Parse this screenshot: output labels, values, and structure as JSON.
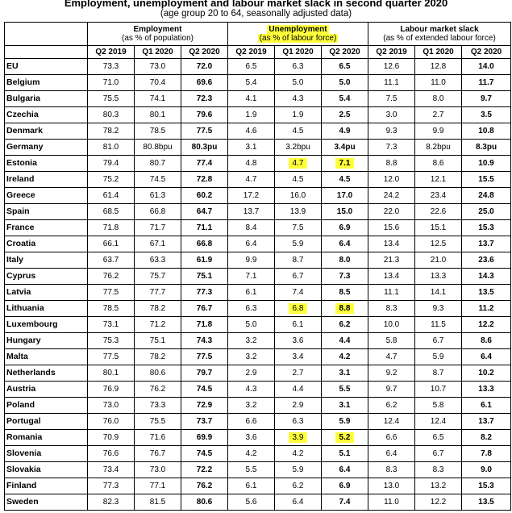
{
  "title": "Employment, unemployment and labour market slack in second quarter 2020",
  "subtitle": "(age group 20 to 64, seasonally adjusted data)",
  "groups": [
    {
      "title": "Employment",
      "unit": "(as % of population)"
    },
    {
      "title": "Unemployment",
      "unit": "(as % of labour force)"
    },
    {
      "title": "Labour market slack",
      "unit": "(as % of extended labour force)"
    }
  ],
  "periods": [
    "Q2 2019",
    "Q1 2020",
    "Q2 2020"
  ],
  "highlight_color": "#ffff3a",
  "rows": [
    {
      "country": "EU",
      "values": [
        "73.3",
        "73.0",
        "72.0",
        "6.5",
        "6.3",
        "6.5",
        "12.6",
        "12.8",
        "14.0"
      ]
    },
    {
      "country": "Belgium",
      "values": [
        "71.0",
        "70.4",
        "69.6",
        "5.4",
        "5.0",
        "5.0",
        "11.1",
        "11.0",
        "11.7"
      ]
    },
    {
      "country": "Bulgaria",
      "values": [
        "75.5",
        "74.1",
        "72.3",
        "4.1",
        "4.3",
        "5.4",
        "7.5",
        "8.0",
        "9.7"
      ]
    },
    {
      "country": "Czechia",
      "values": [
        "80.3",
        "80.1",
        "79.6",
        "1.9",
        "1.9",
        "2.5",
        "3.0",
        "2.7",
        "3.5"
      ]
    },
    {
      "country": "Denmark",
      "values": [
        "78.2",
        "78.5",
        "77.5",
        "4.6",
        "4.5",
        "4.9",
        "9.3",
        "9.9",
        "10.8"
      ]
    },
    {
      "country": "Germany",
      "values": [
        "81.0",
        "80.8bpu",
        "80.3pu",
        "3.1",
        "3.2bpu",
        "3.4pu",
        "7.3",
        "8.2bpu",
        "8.3pu"
      ]
    },
    {
      "country": "Estonia",
      "values": [
        "79.4",
        "80.7",
        "77.4",
        "4.8",
        "4.7",
        "7.1",
        "8.8",
        "8.6",
        "10.9"
      ],
      "highlight": [
        4,
        5
      ]
    },
    {
      "country": "Ireland",
      "values": [
        "75.2",
        "74.5",
        "72.8",
        "4.7",
        "4.5",
        "4.5",
        "12.0",
        "12.1",
        "15.5"
      ]
    },
    {
      "country": "Greece",
      "values": [
        "61.4",
        "61.3",
        "60.2",
        "17.2",
        "16.0",
        "17.0",
        "24.2",
        "23.4",
        "24.8"
      ]
    },
    {
      "country": "Spain",
      "values": [
        "68.5",
        "66.8",
        "64.7",
        "13.7",
        "13.9",
        "15.0",
        "22.0",
        "22.6",
        "25.0"
      ]
    },
    {
      "country": "France",
      "values": [
        "71.8",
        "71.7",
        "71.1",
        "8.4",
        "7.5",
        "6.9",
        "15.6",
        "15.1",
        "15.3"
      ]
    },
    {
      "country": "Croatia",
      "values": [
        "66.1",
        "67.1",
        "66.8",
        "6.4",
        "5.9",
        "6.4",
        "13.4",
        "12.5",
        "13.7"
      ]
    },
    {
      "country": "Italy",
      "values": [
        "63.7",
        "63.3",
        "61.9",
        "9.9",
        "8.7",
        "8.0",
        "21.3",
        "21.0",
        "23.6"
      ]
    },
    {
      "country": "Cyprus",
      "values": [
        "76.2",
        "75.7",
        "75.1",
        "7.1",
        "6.7",
        "7.3",
        "13.4",
        "13.3",
        "14.3"
      ]
    },
    {
      "country": "Latvia",
      "values": [
        "77.5",
        "77.7",
        "77.3",
        "6.1",
        "7.4",
        "8.5",
        "11.1",
        "14.1",
        "13.5"
      ]
    },
    {
      "country": "Lithuania",
      "values": [
        "78.5",
        "78.2",
        "76.7",
        "6.3",
        "6.8",
        "8.8",
        "8.3",
        "9.3",
        "11.2"
      ],
      "highlight": [
        4,
        5
      ]
    },
    {
      "country": "Luxembourg",
      "values": [
        "73.1",
        "71.2",
        "71.8",
        "5.0",
        "6.1",
        "6.2",
        "10.0",
        "11.5",
        "12.2"
      ]
    },
    {
      "country": "Hungary",
      "values": [
        "75.3",
        "75.1",
        "74.3",
        "3.2",
        "3.6",
        "4.4",
        "5.8",
        "6.7",
        "8.6"
      ]
    },
    {
      "country": "Malta",
      "values": [
        "77.5",
        "78.2",
        "77.5",
        "3.2",
        "3.4",
        "4.2",
        "4.7",
        "5.9",
        "6.4"
      ]
    },
    {
      "country": "Netherlands",
      "values": [
        "80.1",
        "80.6",
        "79.7",
        "2.9",
        "2.7",
        "3.1",
        "9.2",
        "8.7",
        "10.2"
      ]
    },
    {
      "country": "Austria",
      "values": [
        "76.9",
        "76.2",
        "74.5",
        "4.3",
        "4.4",
        "5.5",
        "9.7",
        "10.7",
        "13.3"
      ]
    },
    {
      "country": "Poland",
      "values": [
        "73.0",
        "73.3",
        "72.9",
        "3.2",
        "2.9",
        "3.1",
        "6.2",
        "5.8",
        "6.1"
      ]
    },
    {
      "country": "Portugal",
      "values": [
        "76.0",
        "75.5",
        "73.7",
        "6.6",
        "6.3",
        "5.9",
        "12.4",
        "12.4",
        "13.7"
      ]
    },
    {
      "country": "Romania",
      "values": [
        "70.9",
        "71.6",
        "69.9",
        "3.6",
        "3.9",
        "5.2",
        "6.6",
        "6.5",
        "8.2"
      ],
      "highlight": [
        4,
        5
      ]
    },
    {
      "country": "Slovenia",
      "values": [
        "76.6",
        "76.7",
        "74.5",
        "4.2",
        "4.2",
        "5.1",
        "6.4",
        "6.7",
        "7.8"
      ]
    },
    {
      "country": "Slovakia",
      "values": [
        "73.4",
        "73.0",
        "72.2",
        "5.5",
        "5.9",
        "6.4",
        "8.3",
        "8.3",
        "9.0"
      ]
    },
    {
      "country": "Finland",
      "values": [
        "77.3",
        "77.1",
        "76.2",
        "6.1",
        "6.2",
        "6.9",
        "13.0",
        "13.2",
        "15.3"
      ]
    },
    {
      "country": "Sweden",
      "values": [
        "82.3",
        "81.5",
        "80.6",
        "5.6",
        "6.4",
        "7.4",
        "11.0",
        "12.2",
        "13.5"
      ]
    }
  ]
}
